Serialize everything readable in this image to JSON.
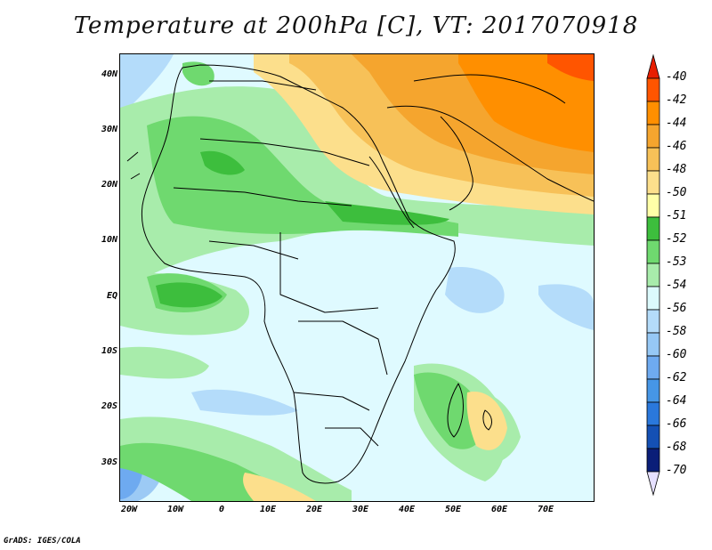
{
  "title": "Temperature at 200hPa [C], VT: 2017070918",
  "footer": "GrADS: IGES/COLA",
  "latitude_labels": [
    "40N",
    "30N",
    "20N",
    "10N",
    "EQ",
    "10S",
    "20S",
    "30S"
  ],
  "longitude_labels": [
    "20W",
    "10W",
    "0",
    "10E",
    "20E",
    "30E",
    "40E",
    "50E",
    "60E",
    "70E"
  ],
  "colorbar": {
    "levels": [
      "-40",
      "-42",
      "-44",
      "-46",
      "-48",
      "-50",
      "-51",
      "-52",
      "-53",
      "-54",
      "-56",
      "-58",
      "-60",
      "-62",
      "-64",
      "-66",
      "-68",
      "-70"
    ],
    "colors": [
      "#e81e00",
      "#ff5500",
      "#ff8f00",
      "#f5a52e",
      "#f7c158",
      "#fcdf8c",
      "#ffffa8",
      "#3dbe3d",
      "#6fd96f",
      "#a8ecab",
      "#dcfafc",
      "#b4dcfa",
      "#96c8f5",
      "#6eaaf0",
      "#4696e6",
      "#2a78dc",
      "#1450b4",
      "#0a1e78",
      "#e6e0ff"
    ]
  }
}
